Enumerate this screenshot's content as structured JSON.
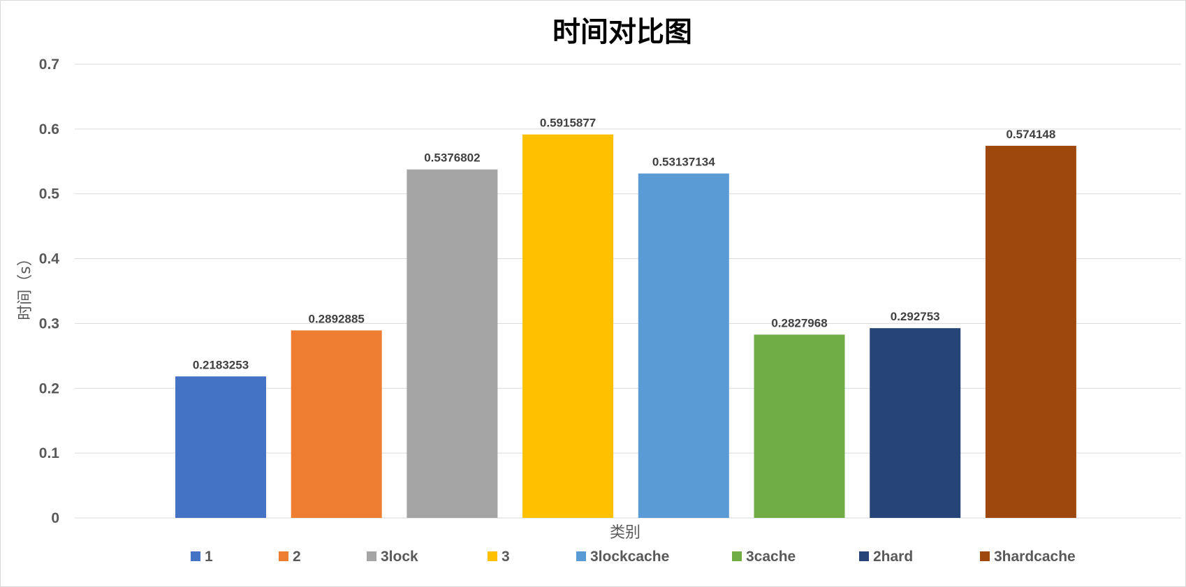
{
  "chart_data": {
    "type": "bar",
    "title": "时间对比图",
    "xlabel": "类别",
    "ylabel": "时间（s）",
    "ylim": [
      0,
      0.7
    ],
    "yticks": [
      "0",
      "0.1",
      "0.2",
      "0.3",
      "0.4",
      "0.5",
      "0.6",
      "0.7"
    ],
    "grid": true,
    "legend_position": "bottom",
    "series": [
      {
        "name": "1",
        "value": 0.2183253,
        "label": "0.2183253",
        "color": "#4472c4"
      },
      {
        "name": "2",
        "value": 0.2892885,
        "label": "0.2892885",
        "color": "#ed7d31"
      },
      {
        "name": "3lock",
        "value": 0.5376802,
        "label": "0.5376802",
        "color": "#a5a5a5"
      },
      {
        "name": "3",
        "value": 0.5915877,
        "label": "0.5915877",
        "color": "#ffc000"
      },
      {
        "name": "3lockcache",
        "value": 0.53137134,
        "label": "0.53137134",
        "color": "#5b9bd5"
      },
      {
        "name": "3cache",
        "value": 0.2827968,
        "label": "0.2827968",
        "color": "#70ad47"
      },
      {
        "name": "2hard",
        "value": 0.292753,
        "label": "0.292753",
        "color": "#264478"
      },
      {
        "name": "3hardcache",
        "value": 0.574148,
        "label": "0.574148",
        "color": "#9e480e"
      }
    ]
  }
}
